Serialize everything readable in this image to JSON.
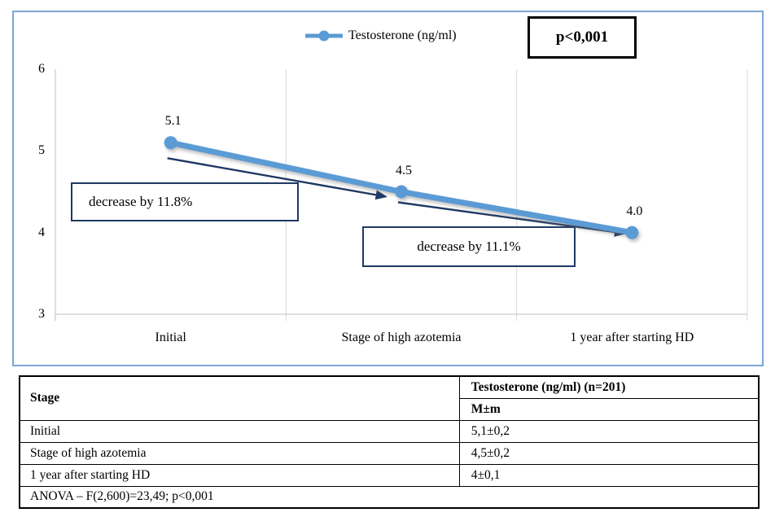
{
  "chart_data": {
    "type": "line",
    "title": "",
    "xlabel": "",
    "ylabel": "",
    "categories": [
      "Initial",
      "Stage of high azotemia",
      "1 year after starting HD"
    ],
    "series": [
      {
        "name": "Testosterone (ng/ml)",
        "values": [
          5.1,
          4.5,
          4.0
        ],
        "point_labels": [
          "5.1",
          "4.5",
          "4.0"
        ]
      }
    ],
    "ylim": [
      3,
      6
    ],
    "yticks": [
      "6",
      "5",
      "4",
      "3"
    ],
    "grid": "vertical-only",
    "legend_position": "top-center",
    "annotations": {
      "p_value": "p<0,001",
      "decrease_1": "decrease by 11.8%",
      "decrease_2": "decrease by 11.1%"
    },
    "colors": {
      "series": "#5B9BD5",
      "arrow": "#1F3864",
      "grid": "#D9D9D9",
      "axis": "#BFBFBF",
      "chart_border": "#7CA6D8",
      "annotation_border": "#1F3864"
    }
  },
  "table": {
    "header": {
      "stage": "Stage",
      "group": "Testosterone (ng/ml) (n=201)",
      "measure": "M±m"
    },
    "rows": [
      {
        "stage": "Initial",
        "value": "5,1±0,2"
      },
      {
        "stage": "Stage of high azotemia",
        "value": "4,5±0,2"
      },
      {
        "stage": "1 year after starting HD",
        "value": "4±0,1"
      }
    ],
    "footer": "ANOVA – F(2,600)=23,49; p<0,001"
  }
}
